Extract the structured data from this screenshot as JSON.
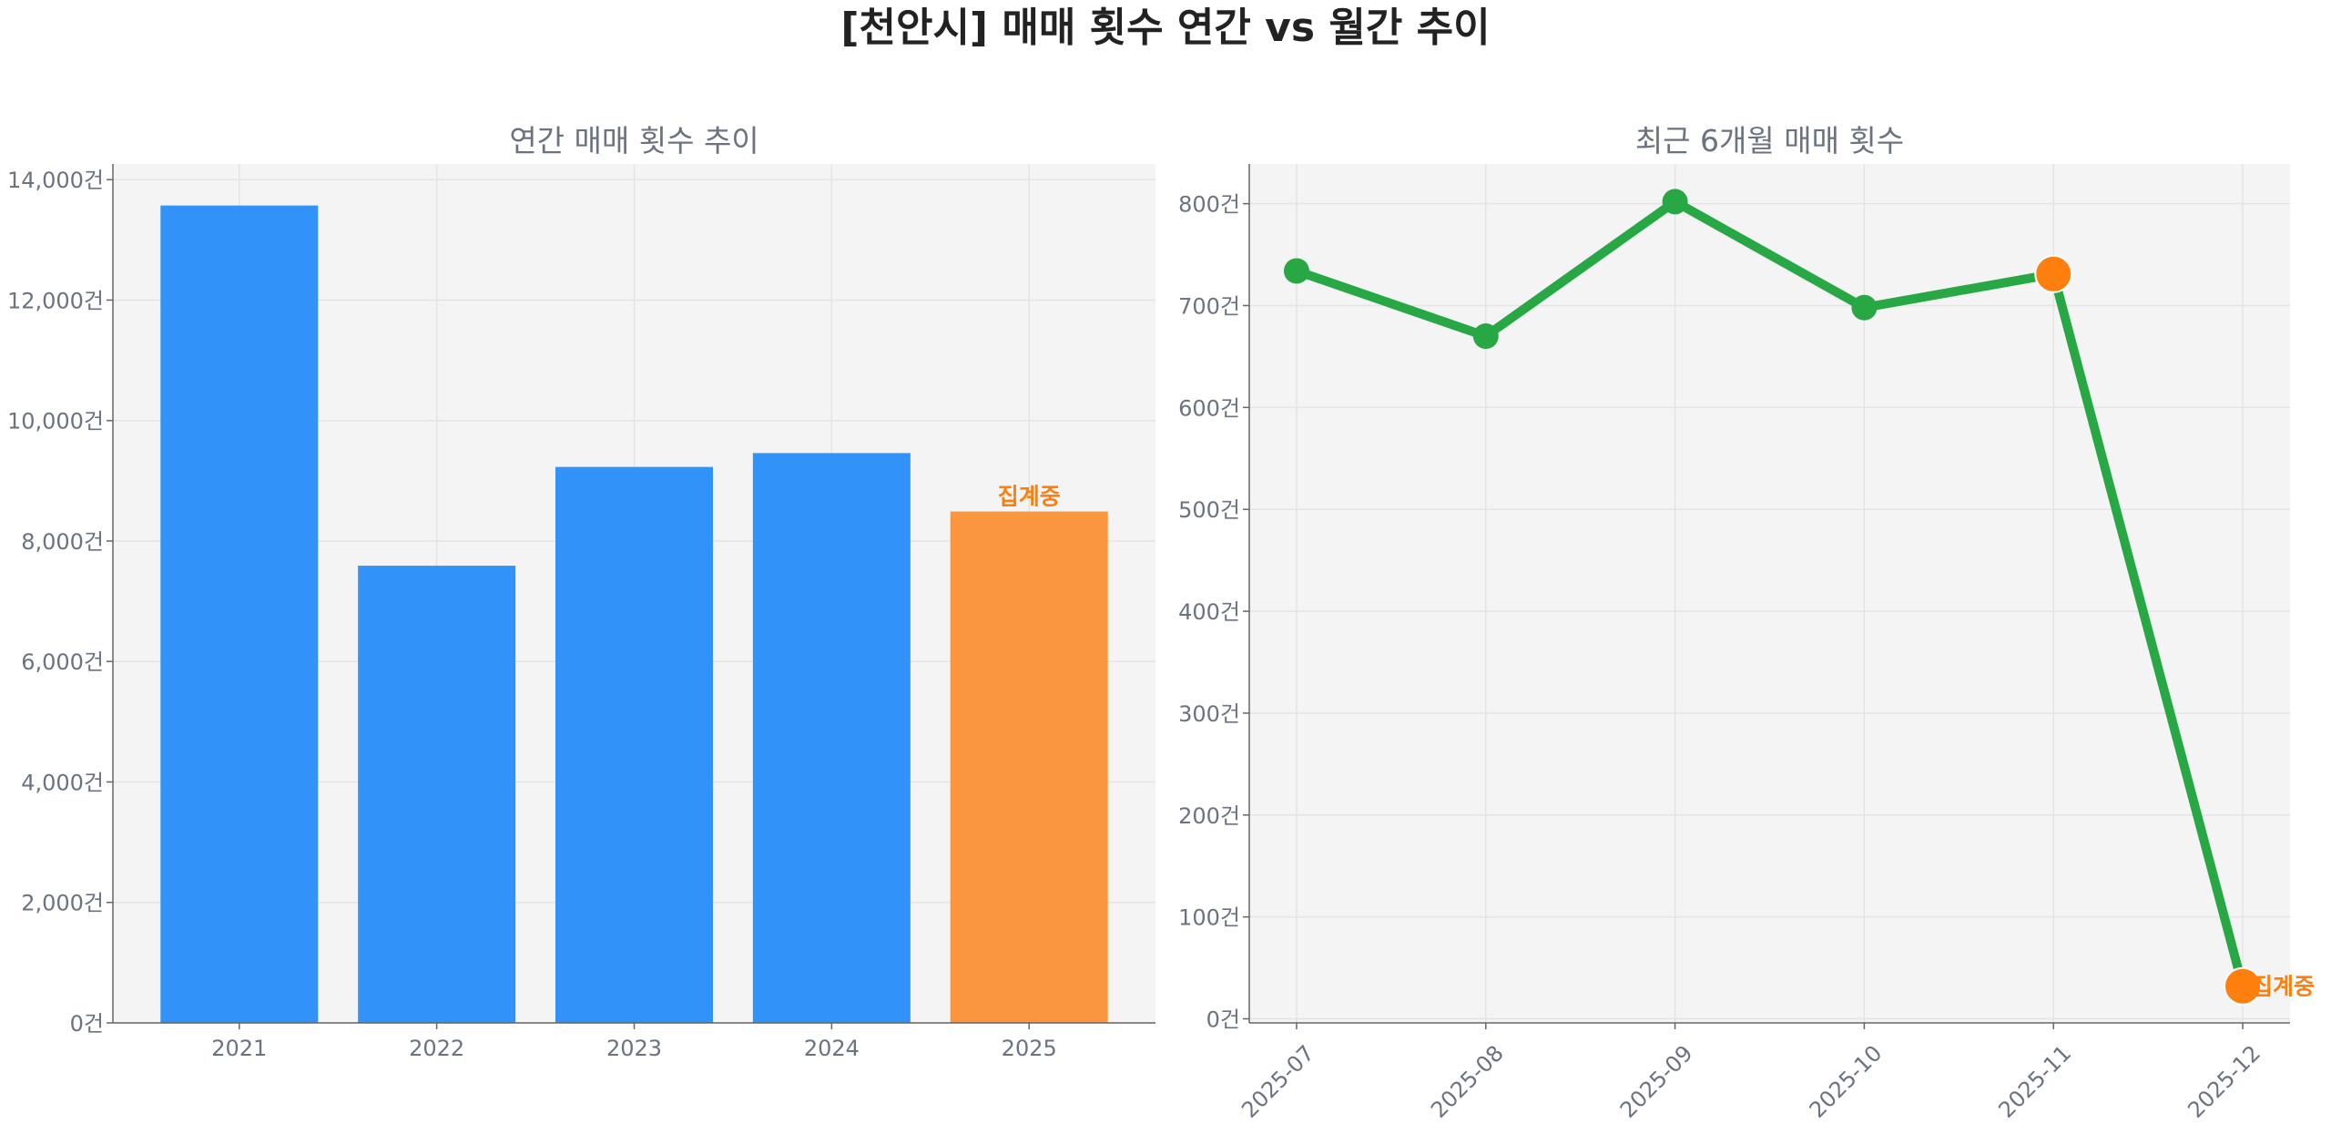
{
  "title": "[천안시] 매매 횟수 연간 vs 월간 추이",
  "colors": {
    "bar": "#3193f9",
    "bar_partial": "#f9963f",
    "line": "#28a745",
    "highlight": "#ff7f0e",
    "plot_bg": "#f4f4f4"
  },
  "chart_data": [
    {
      "type": "bar",
      "title": "연간 매매 횟수 추이",
      "categories": [
        "2021",
        "2022",
        "2023",
        "2024",
        "2025"
      ],
      "values": [
        13570,
        7590,
        9230,
        9460,
        8490
      ],
      "partial": [
        false,
        false,
        false,
        false,
        true
      ],
      "annotation": "집계중",
      "ylim": [
        0,
        14260
      ],
      "yticks": [
        0,
        2000,
        4000,
        6000,
        8000,
        10000,
        12000,
        14000
      ],
      "ytick_labels": [
        "0건",
        "2,000건",
        "4,000건",
        "6,000건",
        "8,000건",
        "10,000건",
        "12,000건",
        "14,000건"
      ],
      "grid": true
    },
    {
      "type": "line",
      "title": "최근 6개월 매매 횟수",
      "categories": [
        "2025-07",
        "2025-08",
        "2025-09",
        "2025-10",
        "2025-11",
        "2025-12"
      ],
      "values": [
        734,
        670,
        802,
        698,
        731,
        32
      ],
      "highlighted": [
        false,
        false,
        false,
        false,
        true,
        true
      ],
      "annotation": "집계중",
      "ylim": [
        -4,
        839
      ],
      "yticks": [
        0,
        100,
        200,
        300,
        400,
        500,
        600,
        700,
        800
      ],
      "ytick_labels": [
        "0건",
        "100건",
        "200건",
        "300건",
        "400건",
        "500건",
        "600건",
        "700건",
        "800건"
      ],
      "grid": true
    }
  ]
}
